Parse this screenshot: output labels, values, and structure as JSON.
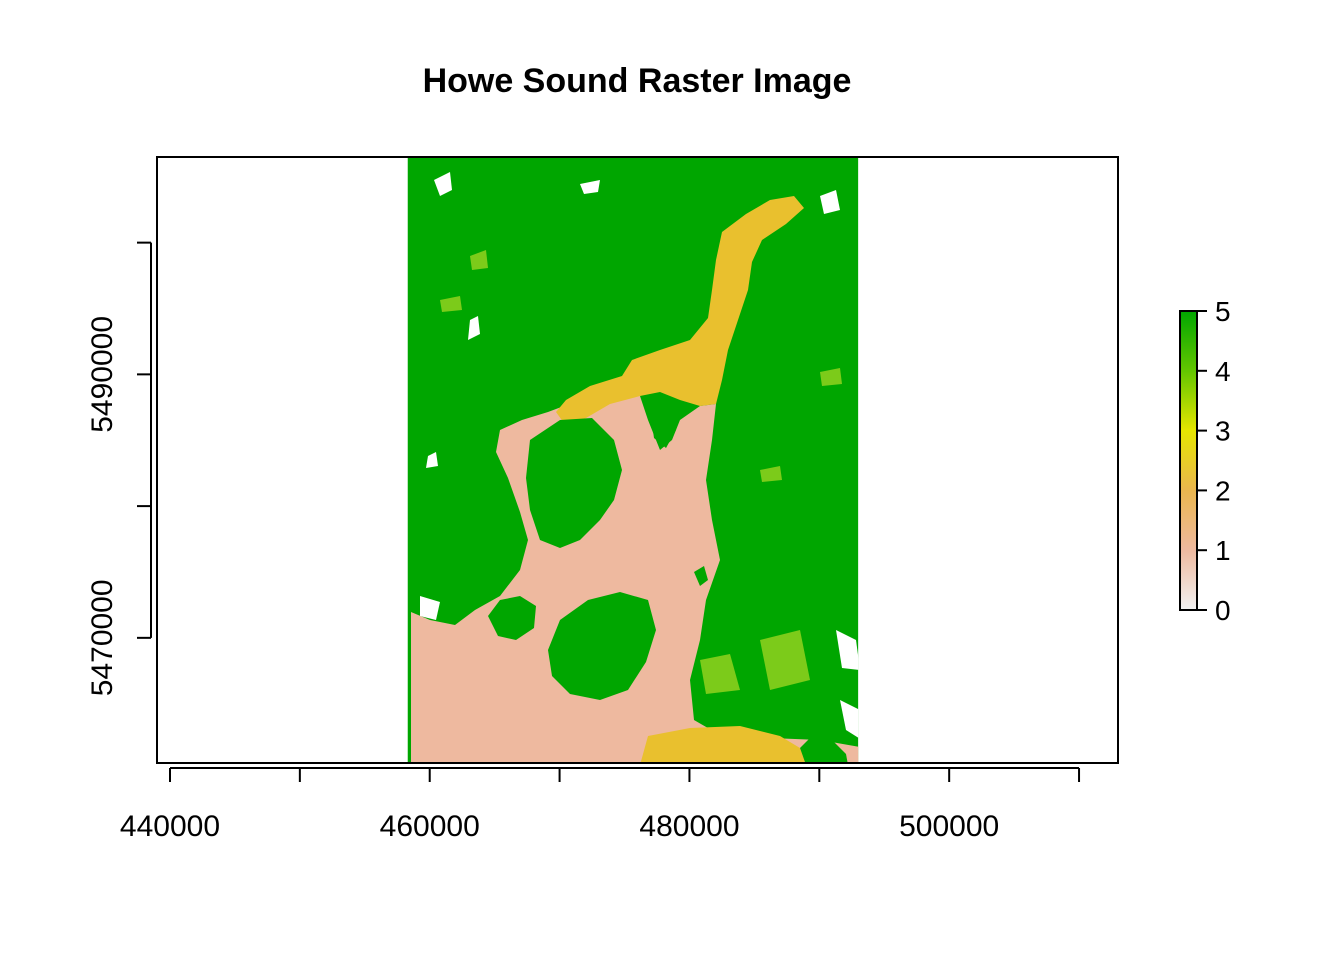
{
  "chart_data": {
    "type": "raster-map",
    "title": "Howe Sound Raster Image",
    "xlim": [
      439000,
      513000
    ],
    "ylim": [
      5460500,
      5506500
    ],
    "raster_extent": {
      "xmin": 458300,
      "xmax": 493000,
      "ymin": 5460500,
      "ymax": 5506500
    },
    "x_ticks": [
      440000,
      450000,
      460000,
      470000,
      480000,
      490000,
      500000,
      510000
    ],
    "x_tick_labels": [
      "440000",
      "",
      "460000",
      "",
      "480000",
      "",
      "500000",
      ""
    ],
    "y_ticks": [
      5470000,
      5480000,
      5490000,
      5500000
    ],
    "y_tick_labels": [
      "5470000",
      "",
      "5490000",
      ""
    ],
    "legend": {
      "placement": "right",
      "min": 0,
      "max": 5,
      "tick_labels": [
        "0",
        "1",
        "2",
        "3",
        "4",
        "5"
      ],
      "colors": [
        "#F2F2F2",
        "#EEB99F",
        "#EAB64E",
        "#E6E600",
        "#63C600",
        "#00A600"
      ]
    },
    "classes": {
      "water": {
        "value": 1,
        "color": "#EEB99F"
      },
      "inlet": {
        "value": 2,
        "color": "#E9C02E"
      },
      "vegetation": {
        "value": 5,
        "color": "#00A600"
      },
      "grass": {
        "value": 4,
        "color": "#7CCB1A"
      },
      "bare": {
        "value": 0,
        "color": "#FFFFFF"
      }
    }
  }
}
